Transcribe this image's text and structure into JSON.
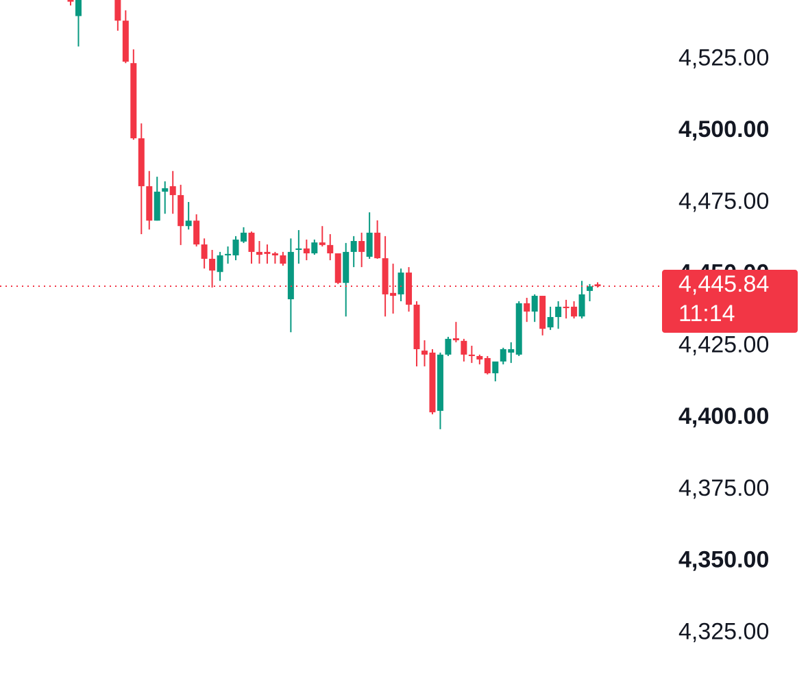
{
  "chart_data": {
    "type": "candlestick",
    "up_color": "#089981",
    "down_color": "#f23645",
    "ylim": [
      4307.2,
      4545.6
    ],
    "yticks": [
      {
        "value": 4325,
        "label": "4,325.00"
      },
      {
        "value": 4350,
        "label": "4,350.00"
      },
      {
        "value": 4375,
        "label": "4,375.00"
      },
      {
        "value": 4400,
        "label": "4,400.00"
      },
      {
        "value": 4425,
        "label": "4,425.00"
      },
      {
        "value": 4450,
        "label": "4,450.00"
      },
      {
        "value": 4475,
        "label": "4,475.00"
      },
      {
        "value": 4500,
        "label": "4,500.00"
      },
      {
        "value": 4525,
        "label": "4,525.00"
      }
    ],
    "last_price": {
      "value": 4445.84,
      "label": "4,445.84"
    },
    "countdown": "11:14",
    "series": [
      {
        "open": [
          4548,
          4540,
          null,
          null,
          null,
          null,
          4546,
          4538.4,
          4523.6,
          4497.4,
          4480.7,
          4468.7,
          4478.8,
          4480.7,
          4477.6,
          4466.8,
          4468.7,
          4460.4,
          4455.4,
          4450.8,
          4456.6,
          4456.6,
          4461.4,
          4464.5,
          4457.8,
          4457.8,
          4457.3,
          4456.6,
          4441.3,
          4458.5,
          4459.0,
          4457.3,
          4461.1,
          4460.2,
          4457.3,
          4447.0,
          4457.8,
          4461.6,
          4456.1,
          4464.5,
          4455.6,
          4443.5,
          4443.0,
          4450.6,
          4439.4,
          4423.4,
          4422.7,
          4402.4,
          4422.0,
          4427.7,
          4426.8,
          4422.0,
          4421.5,
          4420.8,
          4415.5,
          4419.6,
          4422.7,
          4422.0,
          4439.9,
          4437.0,
          4442.5,
          4431.5,
          4435.1,
          4438.7,
          4438.7,
          4435.3,
          4444.2,
          4446.5
        ],
        "high": [
          4550,
          4548,
          null,
          null,
          null,
          null,
          4548,
          4542,
          4528.4,
          4502.6,
          4486,
          4484,
          4482.4,
          4486,
          4481.2,
          4475.2,
          4470.9,
          4462.5,
          4458.5,
          4457.8,
          4459.7,
          4463.3,
          4466.4,
          4464.9,
          4461.6,
          4460.4,
          4457.8,
          4457.8,
          4462.5,
          4465.4,
          4462.1,
          4462.1,
          4466.8,
          4464.0,
          4457.3,
          4460.9,
          4463.3,
          4464.5,
          4471.6,
          4468.8,
          4463.3,
          4453.7,
          4452.0,
          4452.5,
          4440.6,
          4427.0,
          4423.9,
          4422.7,
          4428.2,
          4433.4,
          4427.5,
          4425.1,
          4422.0,
          4421.5,
          4419.6,
          4424.4,
          4426.3,
          4440.6,
          4441.8,
          4443.0,
          4442.5,
          4438.7,
          4440.6,
          4441.1,
          4440.6,
          4447.7,
          4446.6,
          4447.2
        ],
        "low": [
          4543.7,
          4529.4,
          null,
          null,
          null,
          null,
          4534.9,
          4523.6,
          4496.9,
          4464.0,
          4465.6,
          4468.7,
          4471.1,
          4471.1,
          4460.2,
          4465.6,
          4459.7,
          4452.0,
          4445.4,
          4447.7,
          4453.7,
          4454.9,
          4460.9,
          4453.7,
          4453.7,
          4453.7,
          4453.7,
          4453.0,
          4429.8,
          4453.7,
          4454.9,
          4456.8,
          4459.7,
          4454.9,
          4446.6,
          4435.3,
          4452.5,
          4452.5,
          4455.4,
          4455.4,
          4435.3,
          4436.3,
          4440.6,
          4437.0,
          4417.9,
          4417.9,
          4401.2,
          4396.0,
          4421.5,
          4426.3,
          4419.6,
          4419.1,
          4418.6,
          4415.1,
          4412.7,
          4418.6,
          4419.1,
          4421.5,
          4433.4,
          4433.4,
          4428.7,
          4430.6,
          4431.0,
          4434.6,
          4434.6,
          4434.6,
          4440.6,
          4445.4
        ],
        "close": [
          4545,
          4546,
          null,
          null,
          null,
          null,
          4538.4,
          4524.1,
          4497.4,
          4480.7,
          4468.7,
          4478.8,
          4480.0,
          4477.6,
          4466.8,
          4468.7,
          4460.4,
          4455.4,
          4451.3,
          4456.6,
          4457.1,
          4462.1,
          4464.5,
          4457.8,
          4456.8,
          4457.1,
          4456.6,
          4453.7,
          4457.8,
          4459.0,
          4457.3,
          4461.1,
          4460.2,
          4457.3,
          4447.0,
          4457.8,
          4461.6,
          4457.8,
          4464.5,
          4455.6,
          4443.0,
          4442.5,
          4450.6,
          4439.4,
          4423.9,
          4422.0,
          4401.9,
          4422.0,
          4427.5,
          4427.0,
          4422.0,
          4421.5,
          4420.3,
          4415.5,
          4419.6,
          4423.9,
          4423.9,
          4439.9,
          4437.0,
          4442.5,
          4431.0,
          4435.1,
          4438.7,
          4438.2,
          4435.3,
          4443.0,
          4445.8,
          4445.84
        ]
      }
    ]
  }
}
